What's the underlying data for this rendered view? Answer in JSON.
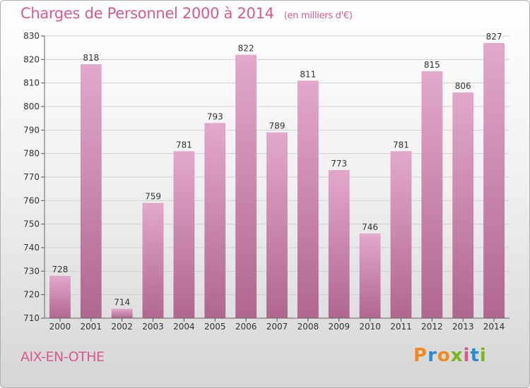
{
  "title": "Charges de Personnel 2000 à 2014",
  "subtitle": "(en milliers d'€)",
  "place": "AIX-EN-OTHE",
  "logo": {
    "text": "Proxiti",
    "letters": [
      "P",
      "r",
      "o",
      "x",
      "i",
      "t",
      "i"
    ],
    "colors": [
      "#f08a1e",
      "#2a8bd0",
      "#f08a1e",
      "#7ab51d",
      "#d6598e",
      "#2a8bd0",
      "#7ab51d"
    ]
  },
  "colors": {
    "accent": "#d6598e",
    "bar_top": "#e3a8cc",
    "bar_bottom": "#b0678f"
  },
  "chart_data": {
    "type": "bar",
    "categories": [
      "2000",
      "2001",
      "2002",
      "2003",
      "2004",
      "2005",
      "2006",
      "2007",
      "2008",
      "2009",
      "2010",
      "2011",
      "2012",
      "2013",
      "2014"
    ],
    "values": [
      728,
      818,
      714,
      759,
      781,
      793,
      822,
      789,
      811,
      773,
      746,
      781,
      815,
      806,
      827
    ],
    "title": "Charges de Personnel 2000 à 2014",
    "subtitle": "(en milliers d'€)",
    "xlabel": "",
    "ylabel": "",
    "ylim": [
      710,
      830
    ],
    "yticks": [
      710,
      720,
      730,
      740,
      750,
      760,
      770,
      780,
      790,
      800,
      810,
      820,
      830
    ],
    "grid": true,
    "data_labels": true
  }
}
